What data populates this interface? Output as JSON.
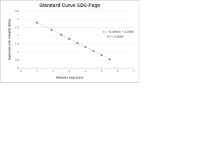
{
  "chart_data": {
    "type": "scatter",
    "title": "Standard Curve SDS-Page",
    "x_label": "Relative migration",
    "y_label": "log(molecular weight) [kDa]",
    "annotations": [
      "y = -0.4994x + 3.2894",
      "R² = 0.9984"
    ],
    "series": [
      {
        "name": "log(molecular weight) [kDa]",
        "color": "#4472c4",
        "x": [
          1.0,
          1.9,
          2.5,
          3.0,
          3.5,
          4.0,
          4.5,
          5.0,
          5.5
        ],
        "values": [
          2.8,
          2.35,
          2.05,
          1.8,
          1.55,
          1.3,
          1.05,
          0.8,
          0.55
        ]
      }
    ],
    "xlim": [
      0,
      7
    ],
    "xticks": [
      0,
      1,
      2,
      3,
      4,
      5,
      6,
      7
    ],
    "ylim": [
      0,
      3.5
    ],
    "yticks": [
      0,
      0.5,
      1,
      1.5,
      2,
      2.5,
      3,
      3.5
    ],
    "grid": true,
    "trendline": true
  }
}
